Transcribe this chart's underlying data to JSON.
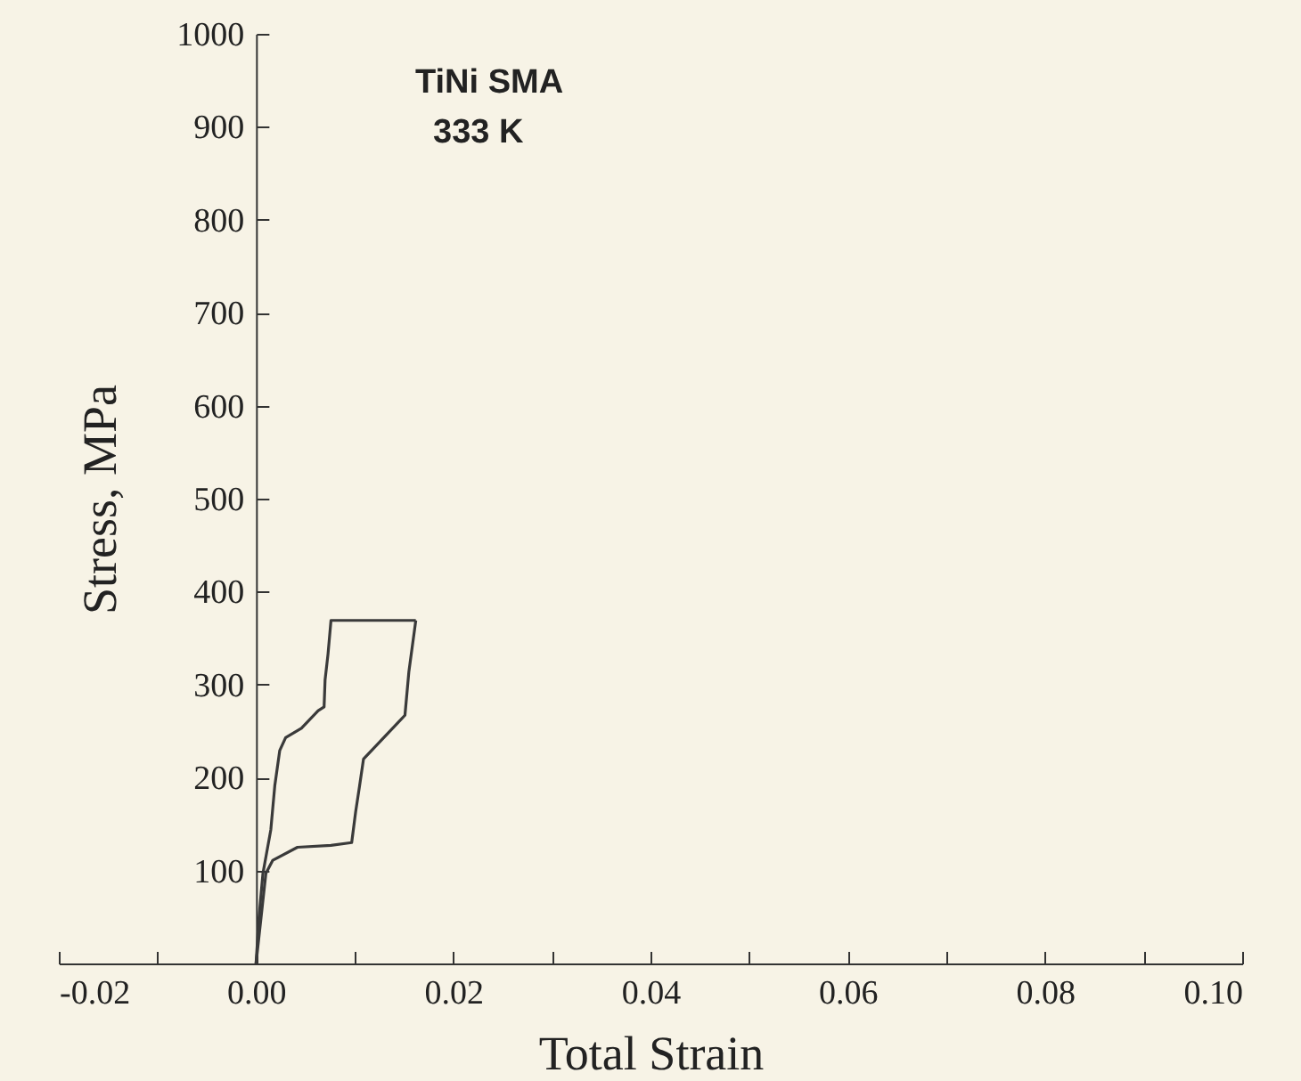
{
  "chart_data": {
    "type": "line",
    "xlabel": "Total Strain",
    "ylabel": "Stress, MPa",
    "annotations": [
      "TiNi  SMA",
      "333 K"
    ],
    "series": [
      {
        "color": "#3a3a3a",
        "x": [
          0,
          0.0003,
          0.0007,
          0.0015,
          0.0019,
          0.0024,
          0.003,
          0.0046,
          0.0063,
          0.0069,
          0.007,
          0.0073,
          0.0076,
          0.0162
        ],
        "values": [
          0,
          50,
          97,
          144,
          191,
          229,
          243,
          253,
          272,
          276,
          305,
          333,
          369,
          369
        ]
      },
      {
        "color": "#3a3a3a",
        "x": [
          0,
          0.001,
          0.0017,
          0.0042,
          0.0076,
          0.0097,
          0.0101,
          0.0105,
          0.0109,
          0.0143,
          0.0151,
          0.0155,
          0.0162
        ],
        "values": [
          0,
          97,
          111,
          125,
          127,
          130,
          163,
          191,
          220,
          258,
          267,
          314,
          369
        ]
      }
    ],
    "xlim": [
      -0.02,
      0.1
    ],
    "xticks": [
      {
        "value": -0.02,
        "label": "-0.02"
      },
      {
        "value": -0.01,
        "label": null
      },
      {
        "value": 0,
        "label": "0.00"
      },
      {
        "value": 0.01,
        "label": null
      },
      {
        "value": 0.02,
        "label": "0.02"
      },
      {
        "value": 0.03,
        "label": null
      },
      {
        "value": 0.04,
        "label": "0.04"
      },
      {
        "value": 0.05,
        "label": null
      },
      {
        "value": 0.06,
        "label": "0.06"
      },
      {
        "value": 0.07,
        "label": null
      },
      {
        "value": 0.08,
        "label": "0.08"
      },
      {
        "value": 0.09,
        "label": null
      },
      {
        "value": 0.1,
        "label": "0.10"
      }
    ],
    "ylim": [
      0,
      1000
    ],
    "yticks": [
      100,
      200,
      300,
      400,
      500,
      600,
      700,
      800,
      900,
      1000
    ],
    "line_style": "solid",
    "marker": "none"
  }
}
